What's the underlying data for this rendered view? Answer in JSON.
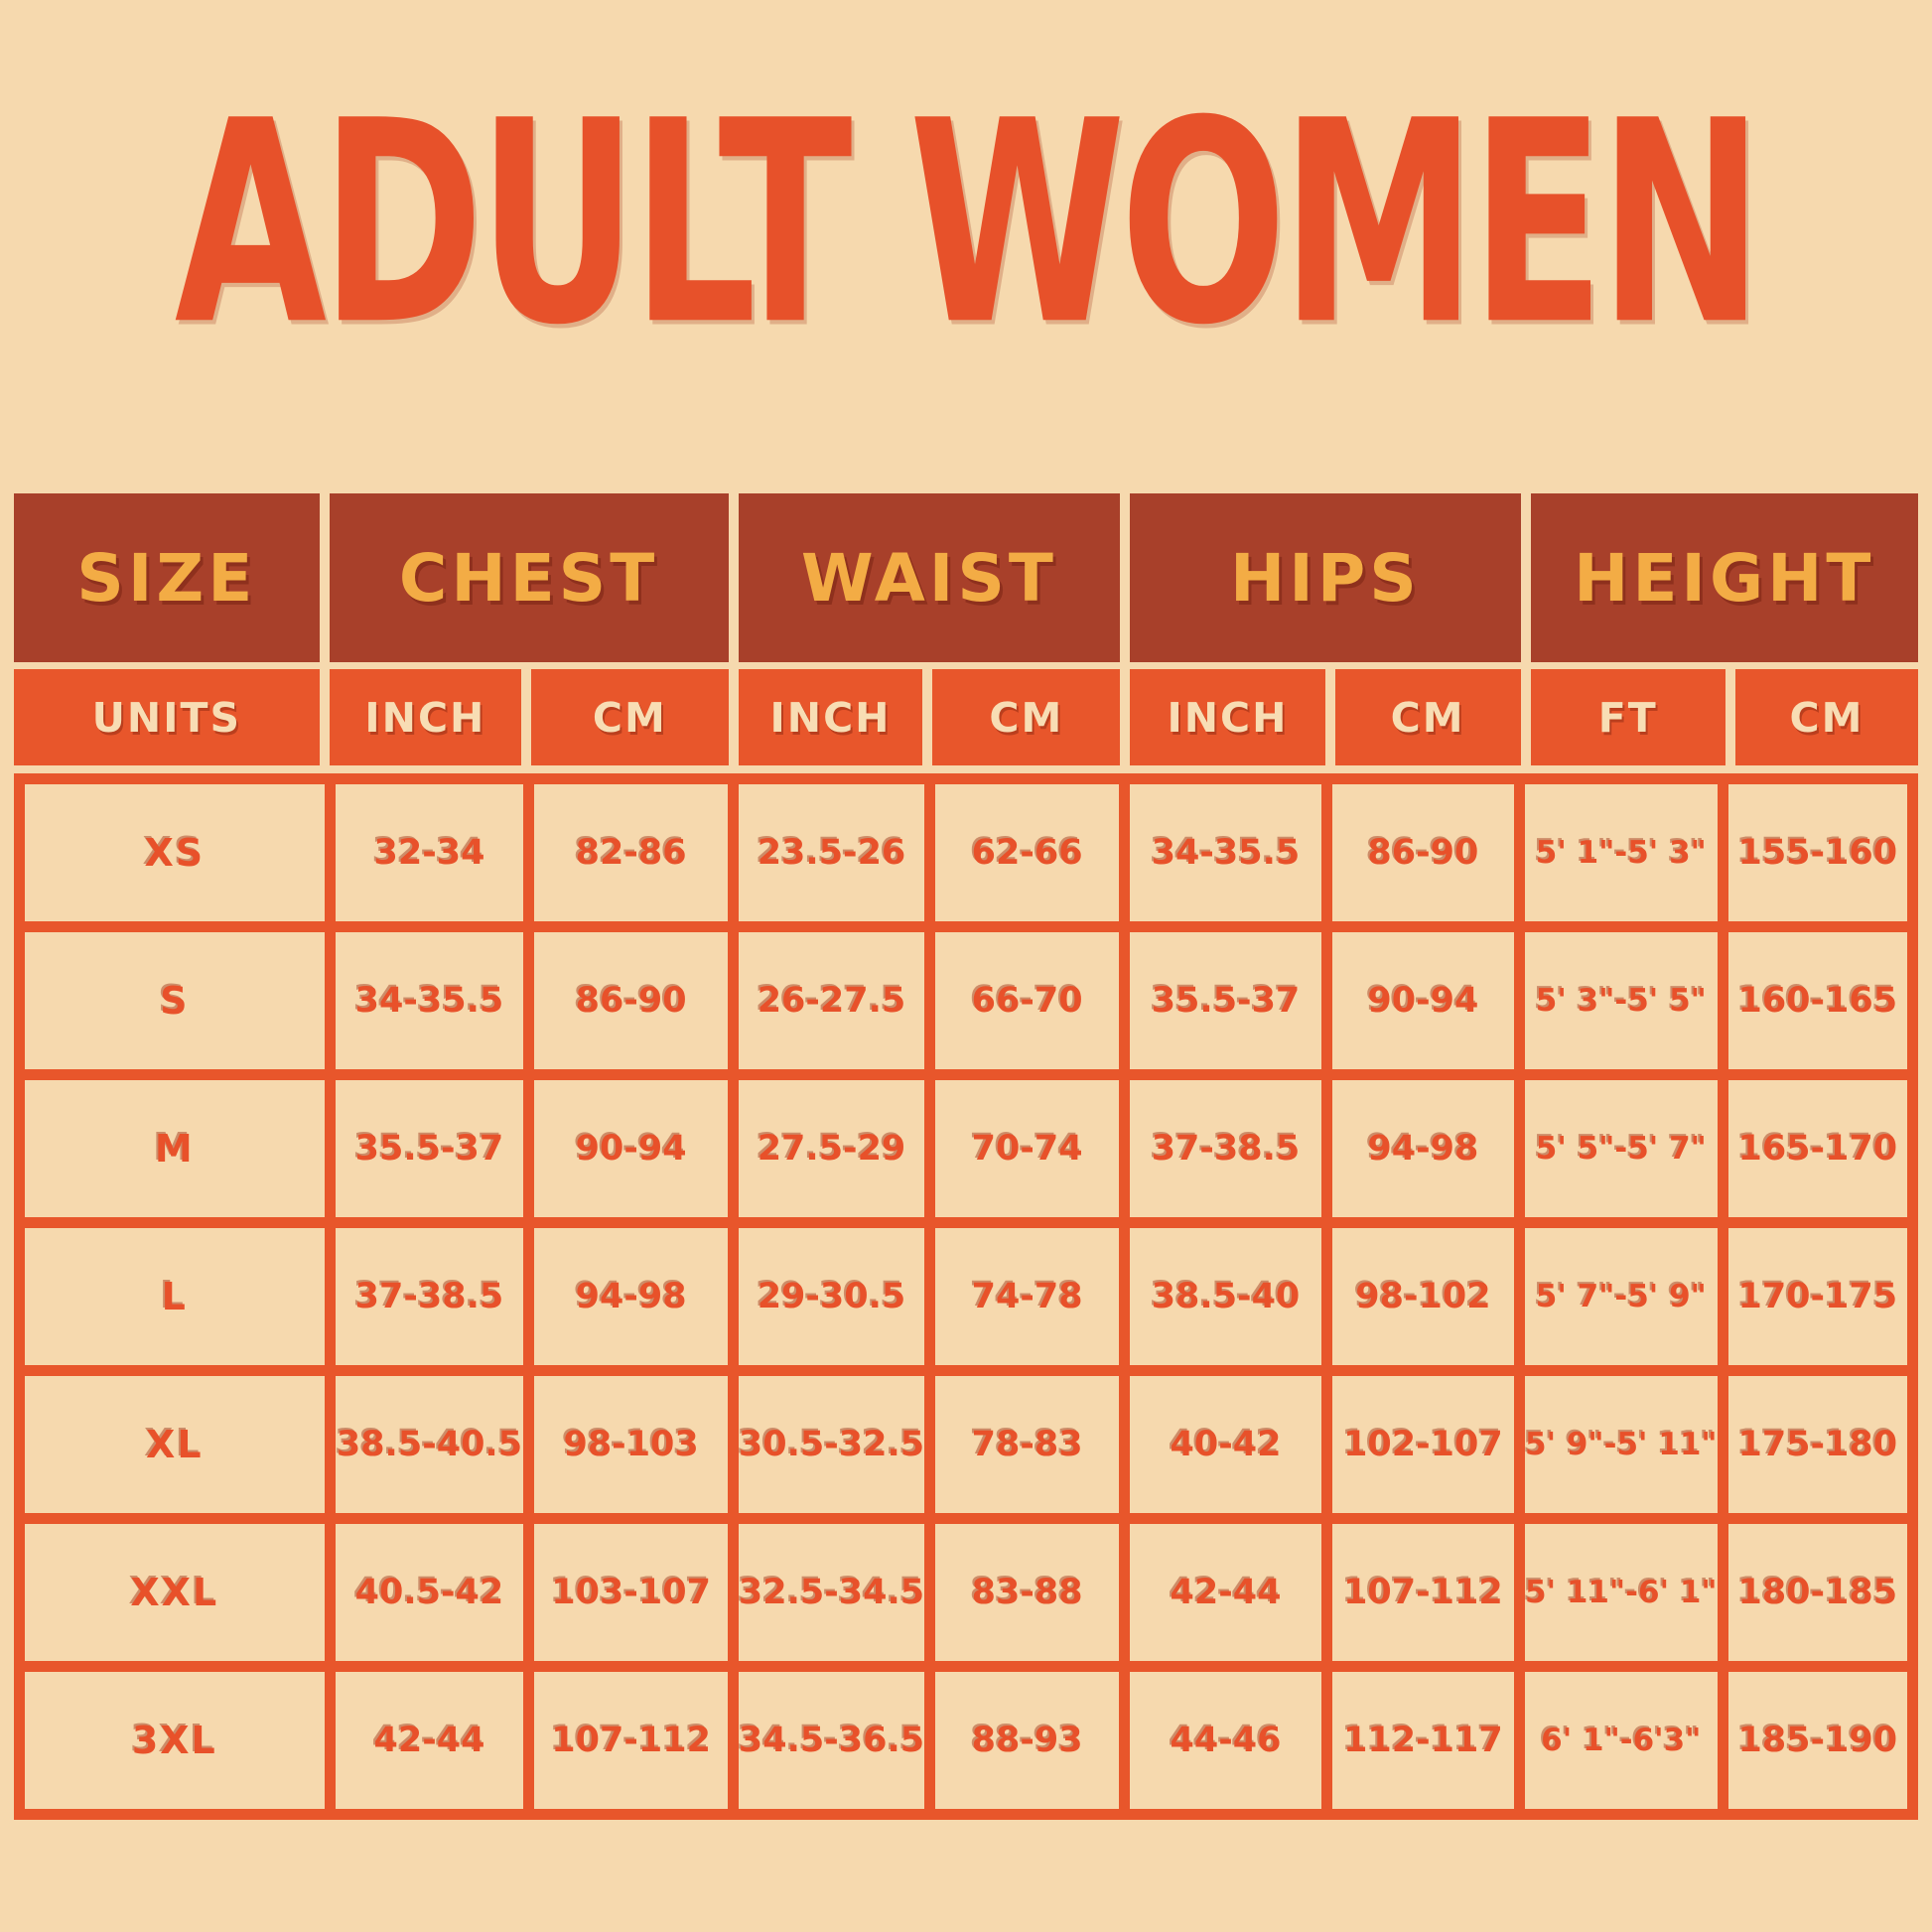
{
  "title": "ADULT WOMEN",
  "colors": {
    "background_cream": "#F6D9AE",
    "grid_orange": "#E8562B",
    "header_dark_red": "#A8402A",
    "header_text_yellow": "#F3AC45",
    "units_text_cream": "#F8DDB4",
    "value_text_orange": "#E8512A",
    "title_orange": "#E7512A"
  },
  "chart_data": {
    "type": "table",
    "title": "ADULT WOMEN",
    "group_headers": [
      "SIZE",
      "CHEST",
      "WAIST",
      "HIPS",
      "HEIGHT"
    ],
    "unit_headers": [
      "UNITS",
      "INCH",
      "CM",
      "INCH",
      "CM",
      "INCH",
      "CM",
      "FT",
      "CM"
    ],
    "rows": [
      {
        "size": "XS",
        "chest_inch": "32-34",
        "chest_cm": "82-86",
        "waist_inch": "23.5-26",
        "waist_cm": "62-66",
        "hips_inch": "34-35.5",
        "hips_cm": "86-90",
        "height_ft": "5' 1\"-5' 3\"",
        "height_cm": "155-160"
      },
      {
        "size": "S",
        "chest_inch": "34-35.5",
        "chest_cm": "86-90",
        "waist_inch": "26-27.5",
        "waist_cm": "66-70",
        "hips_inch": "35.5-37",
        "hips_cm": "90-94",
        "height_ft": "5' 3\"-5' 5\"",
        "height_cm": "160-165"
      },
      {
        "size": "M",
        "chest_inch": "35.5-37",
        "chest_cm": "90-94",
        "waist_inch": "27.5-29",
        "waist_cm": "70-74",
        "hips_inch": "37-38.5",
        "hips_cm": "94-98",
        "height_ft": "5' 5\"-5' 7\"",
        "height_cm": "165-170"
      },
      {
        "size": "L",
        "chest_inch": "37-38.5",
        "chest_cm": "94-98",
        "waist_inch": "29-30.5",
        "waist_cm": "74-78",
        "hips_inch": "38.5-40",
        "hips_cm": "98-102",
        "height_ft": "5' 7\"-5' 9\"",
        "height_cm": "170-175"
      },
      {
        "size": "XL",
        "chest_inch": "38.5-40.5",
        "chest_cm": "98-103",
        "waist_inch": "30.5-32.5",
        "waist_cm": "78-83",
        "hips_inch": "40-42",
        "hips_cm": "102-107",
        "height_ft": "5' 9\"-5' 11\"",
        "height_cm": "175-180"
      },
      {
        "size": "XXL",
        "chest_inch": "40.5-42",
        "chest_cm": "103-107",
        "waist_inch": "32.5-34.5",
        "waist_cm": "83-88",
        "hips_inch": "42-44",
        "hips_cm": "107-112",
        "height_ft": "5' 11\"-6' 1\"",
        "height_cm": "180-185"
      },
      {
        "size": "3XL",
        "chest_inch": "42-44",
        "chest_cm": "107-112",
        "waist_inch": "34.5-36.5",
        "waist_cm": "88-93",
        "hips_inch": "44-46",
        "hips_cm": "112-117",
        "height_ft": "6' 1\"-6'3\"",
        "height_cm": "185-190"
      }
    ]
  }
}
